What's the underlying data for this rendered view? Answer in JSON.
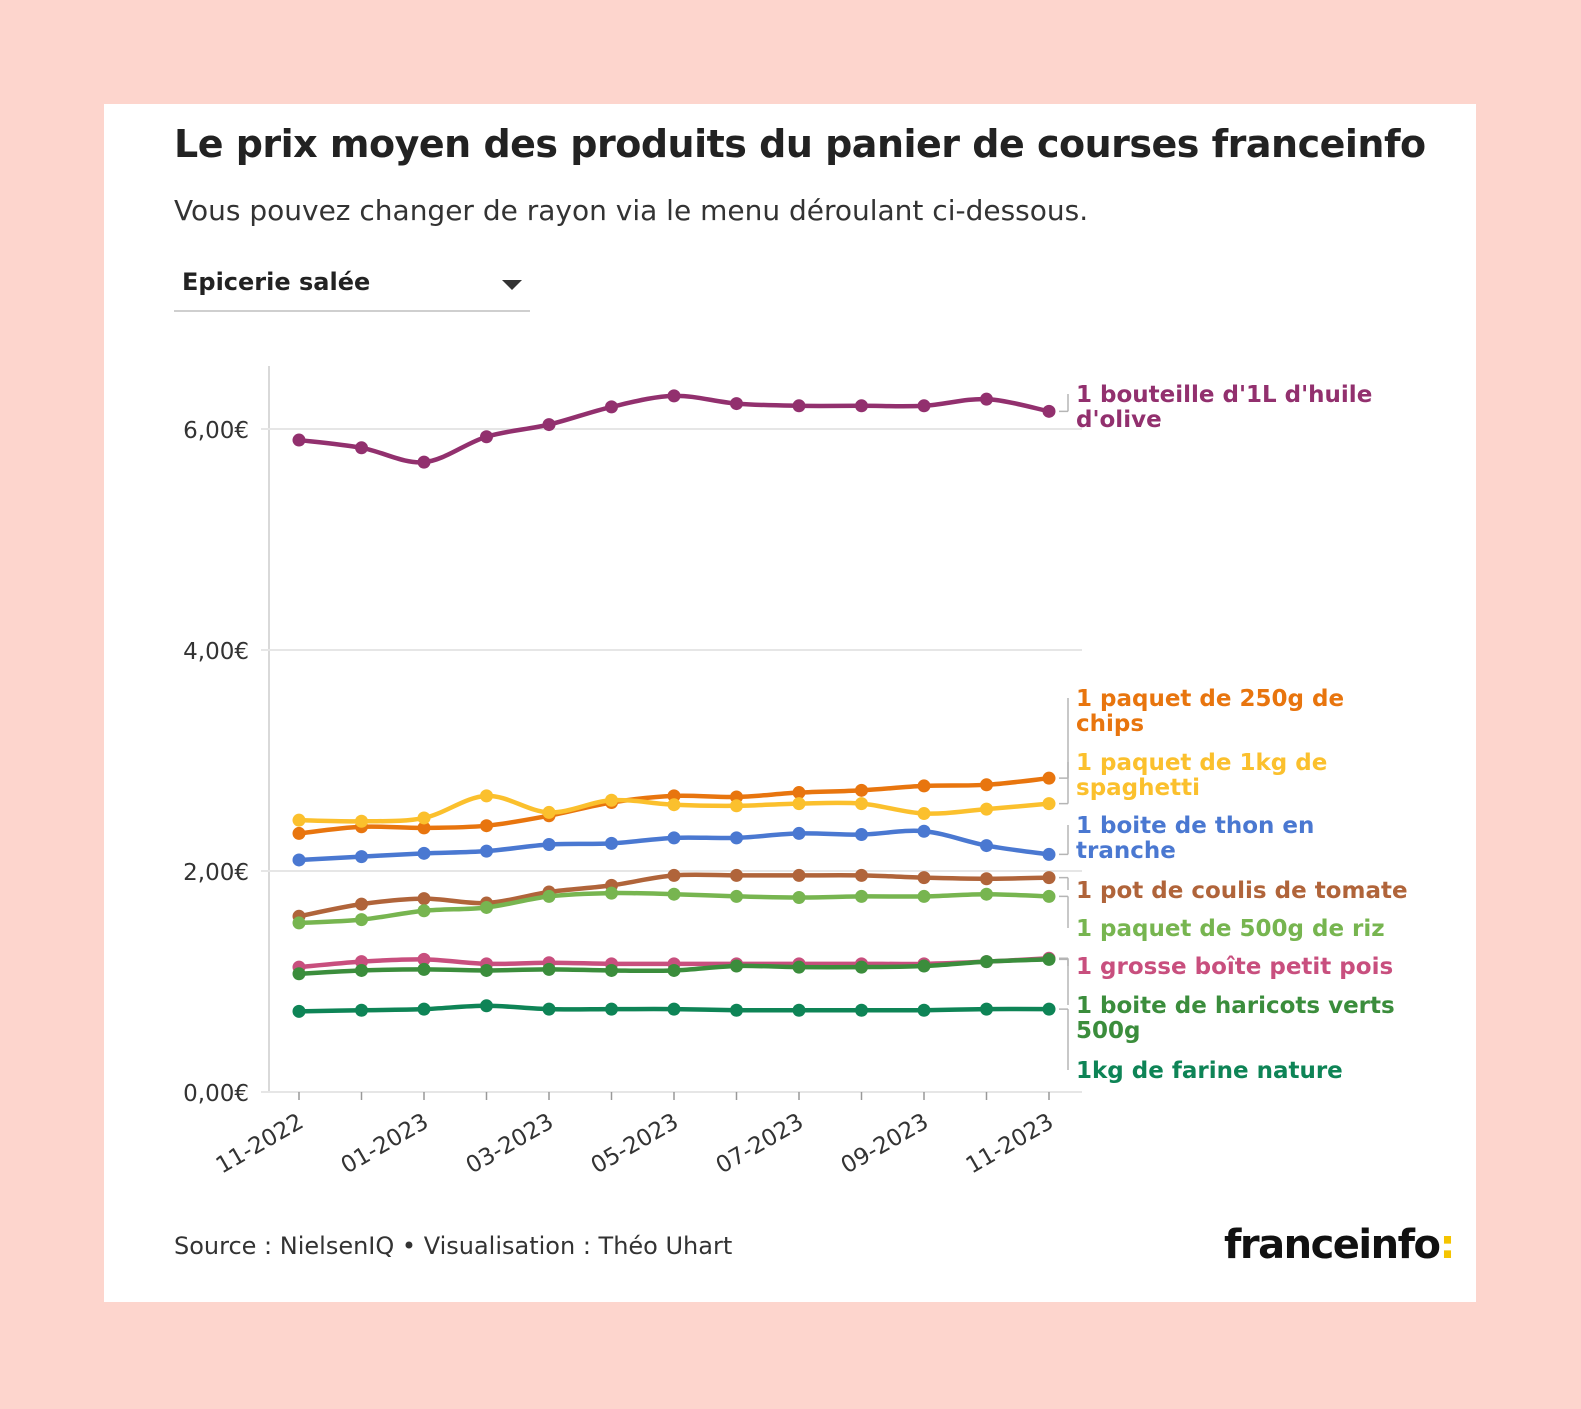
{
  "header": {
    "title": "Le prix moyen des produits du panier de courses franceinfo",
    "subtitle": "Vous pouvez changer de rayon via le menu déroulant ci-dessous."
  },
  "dropdown": {
    "selected": "Epicerie salée"
  },
  "footer": {
    "source": "Source : NielsenIQ • Visualisation : Théo Uhart",
    "logo_text": "franceinfo",
    "logo_colon": ":"
  },
  "chart_data": {
    "type": "line",
    "x": [
      "11-2022",
      "12-2022",
      "01-2023",
      "02-2023",
      "03-2023",
      "04-2023",
      "05-2023",
      "06-2023",
      "07-2023",
      "08-2023",
      "09-2023",
      "10-2023",
      "11-2023"
    ],
    "x_tick_labels": [
      "11-2022",
      "01-2023",
      "03-2023",
      "05-2023",
      "07-2023",
      "09-2023",
      "11-2023"
    ],
    "y_ticks": [
      "0,00€",
      "2,00€",
      "4,00€",
      "6,00€"
    ],
    "y_tick_values": [
      0,
      2,
      4,
      6
    ],
    "ylim": [
      0,
      6.6
    ],
    "grid": "horizontal",
    "legend": "direct labels at right",
    "series": [
      {
        "name": "1 bouteille d'1L d'huile d'olive",
        "label_lines": [
          "1 bouteille d'1L d'huile",
          "d'olive"
        ],
        "color": "#92306e",
        "values": [
          5.9,
          5.83,
          5.7,
          5.93,
          6.04,
          6.2,
          6.3,
          6.23,
          6.21,
          6.21,
          6.21,
          6.27,
          6.16
        ]
      },
      {
        "name": "1 paquet de 250g de chips",
        "label_lines": [
          "1 paquet de 250g de",
          "chips"
        ],
        "color": "#e8750e",
        "values": [
          2.34,
          2.4,
          2.39,
          2.41,
          2.5,
          2.62,
          2.68,
          2.67,
          2.71,
          2.73,
          2.77,
          2.78,
          2.84
        ]
      },
      {
        "name": "1 paquet de 1kg de spaghetti",
        "label_lines": [
          "1 paquet de 1kg de",
          "spaghetti"
        ],
        "color": "#fbc02d",
        "values": [
          2.46,
          2.45,
          2.48,
          2.68,
          2.53,
          2.64,
          2.6,
          2.59,
          2.61,
          2.61,
          2.52,
          2.56,
          2.61
        ]
      },
      {
        "name": "1 boite de thon en tranche",
        "label_lines": [
          "1 boite de thon en",
          "tranche"
        ],
        "color": "#4a78d1",
        "values": [
          2.1,
          2.13,
          2.16,
          2.18,
          2.24,
          2.25,
          2.3,
          2.3,
          2.34,
          2.33,
          2.36,
          2.23,
          2.15
        ]
      },
      {
        "name": "1 pot de coulis de tomate",
        "label_lines": [
          "1 pot de coulis de tomate"
        ],
        "color": "#b0643a",
        "values": [
          1.59,
          1.7,
          1.75,
          1.71,
          1.81,
          1.87,
          1.96,
          1.96,
          1.96,
          1.96,
          1.94,
          1.93,
          1.94
        ]
      },
      {
        "name": "1 paquet de 500g de riz",
        "label_lines": [
          "1 paquet de 500g de riz"
        ],
        "color": "#77b550",
        "values": [
          1.53,
          1.56,
          1.64,
          1.67,
          1.77,
          1.8,
          1.79,
          1.77,
          1.76,
          1.77,
          1.77,
          1.79,
          1.77
        ]
      },
      {
        "name": "1 grosse boîte petit pois",
        "label_lines": [
          "1 grosse boîte petit pois"
        ],
        "color": "#c84f7e",
        "values": [
          1.13,
          1.18,
          1.2,
          1.16,
          1.17,
          1.16,
          1.16,
          1.16,
          1.16,
          1.16,
          1.16,
          1.18,
          1.21
        ]
      },
      {
        "name": "1 boite de haricots verts 500g",
        "label_lines": [
          "1 boite de haricots verts",
          "500g"
        ],
        "color": "#3b8d3c",
        "values": [
          1.07,
          1.1,
          1.11,
          1.1,
          1.11,
          1.1,
          1.1,
          1.14,
          1.13,
          1.13,
          1.14,
          1.18,
          1.2
        ]
      },
      {
        "name": "1kg de farine nature",
        "label_lines": [
          "1kg de farine nature"
        ],
        "color": "#0e8456",
        "values": [
          0.73,
          0.74,
          0.75,
          0.78,
          0.75,
          0.75,
          0.75,
          0.74,
          0.74,
          0.74,
          0.74,
          0.75,
          0.75
        ]
      }
    ]
  }
}
